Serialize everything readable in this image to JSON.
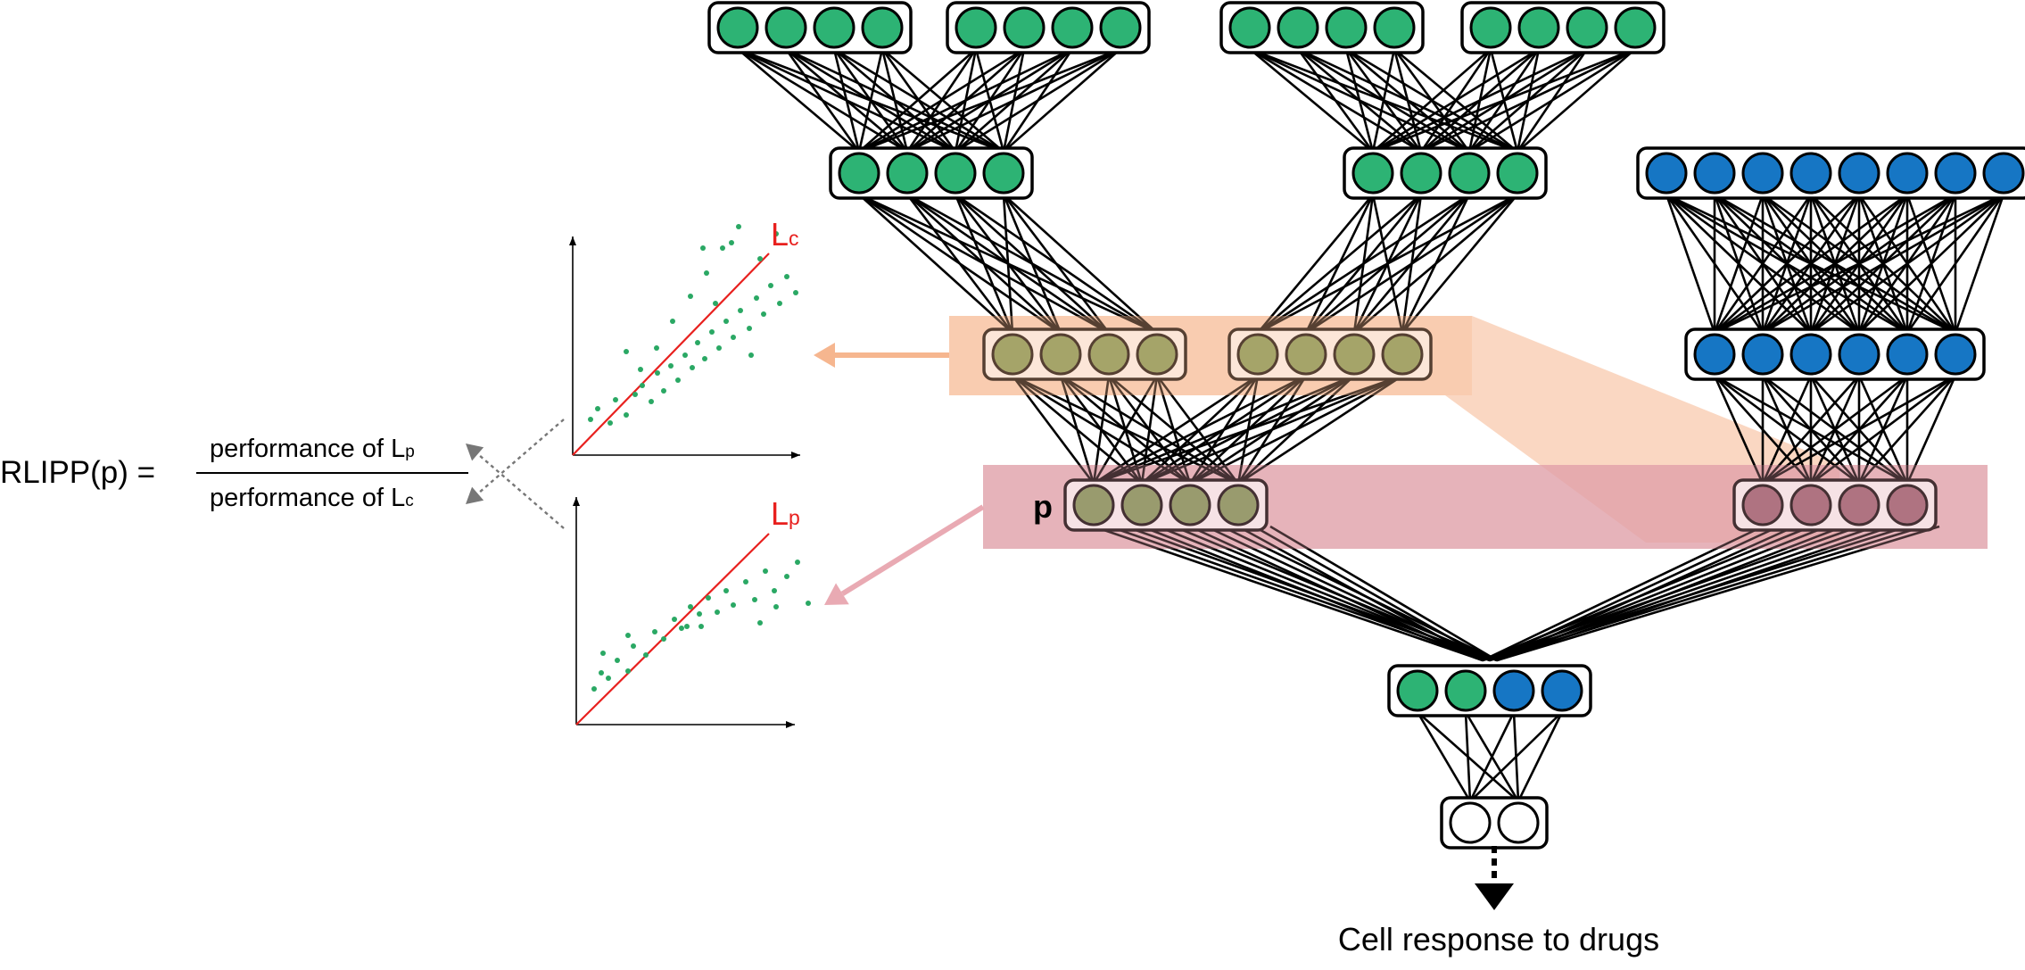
{
  "formula": {
    "lhs": "RLIPP(p) =",
    "numerator_text": "performance of L",
    "numerator_sub": "p",
    "denominator_text": "performance of L",
    "denominator_sub": "c"
  },
  "plots": {
    "top": {
      "line_label": "L",
      "line_sub": "c"
    },
    "bottom": {
      "line_label": "L",
      "line_sub": "p"
    }
  },
  "network": {
    "highlighted_node_label": "p",
    "output_label": "Cell response to drugs"
  },
  "colors": {
    "green": "#2db374",
    "blue": "#1676c4",
    "olive": "#7a9a55",
    "mauve": "#9a6070",
    "white": "#ffffff",
    "red_line": "#e8201e",
    "peach_band": "#f6b68f",
    "pink_band": "#e0a0a8",
    "dots": "#2aa864"
  }
}
